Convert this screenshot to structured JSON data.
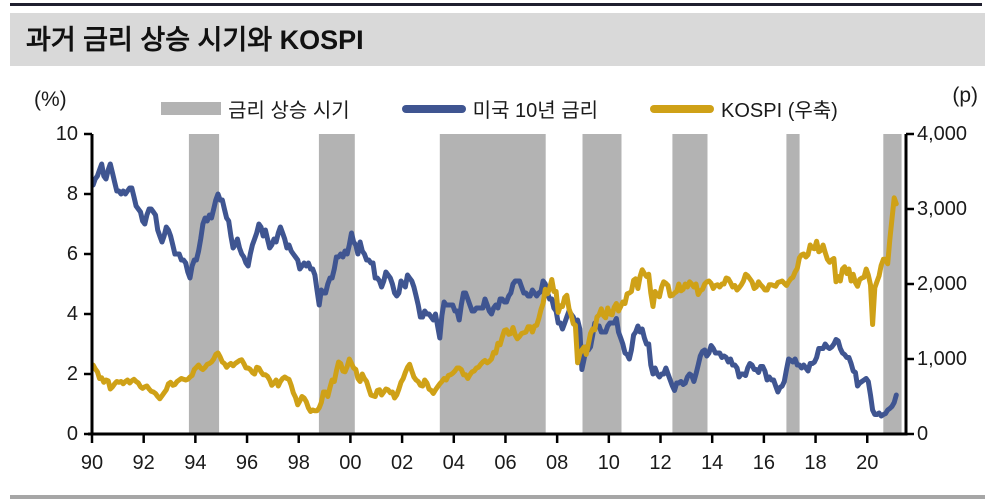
{
  "title": "과거 금리 상승 시기와 KOSPI",
  "chart_data": {
    "type": "line",
    "title": "과거 금리 상승 시기와 KOSPI",
    "x_range": [
      1990,
      2021.5
    ],
    "x_tick_years": [
      1990,
      1992,
      1994,
      1996,
      1998,
      2000,
      2002,
      2004,
      2006,
      2008,
      2010,
      2012,
      2014,
      2016,
      2018,
      2020
    ],
    "x_tick_labels": [
      "90",
      "92",
      "94",
      "96",
      "98",
      "00",
      "02",
      "04",
      "06",
      "08",
      "10",
      "12",
      "14",
      "16",
      "18",
      "20"
    ],
    "left_axis": {
      "unit": "(%)",
      "range": [
        0,
        10
      ],
      "ticks": [
        0,
        2,
        4,
        6,
        8,
        10
      ],
      "tick_labels": [
        "0",
        "2",
        "4",
        "6",
        "8",
        "10"
      ]
    },
    "right_axis": {
      "unit": "(p)",
      "range": [
        0,
        4000
      ],
      "ticks": [
        0,
        1000,
        2000,
        3000,
        4000
      ],
      "tick_labels": [
        "0",
        "1,000",
        "2,000",
        "3,000",
        "4,000"
      ]
    },
    "grid": false,
    "legend_position": "top",
    "legend": [
      {
        "label": "금리 상승 시기",
        "type": "band",
        "color": "#b3b3b3"
      },
      {
        "label": "미국 10년 금리",
        "type": "line",
        "color": "#3f5591"
      },
      {
        "label": "KOSPI (우축)",
        "type": "line",
        "color": "#cfa117"
      }
    ],
    "bands": {
      "name": "금리 상승 시기",
      "color": "#b3b3b3",
      "ranges": [
        [
          1993.75,
          1994.92
        ],
        [
          1998.78,
          2000.17
        ],
        [
          2003.46,
          2007.56
        ],
        [
          2008.98,
          2010.49
        ],
        [
          2012.46,
          2013.82
        ],
        [
          2016.87,
          2017.38
        ],
        [
          2020.62,
          2021.33
        ]
      ]
    },
    "sampling": "monthly",
    "start_year": 1990,
    "series": [
      {
        "name": "미국 10년 금리",
        "axis": "left",
        "color": "#3f5591",
        "values": [
          8.3,
          8.5,
          8.6,
          8.8,
          9.0,
          8.6,
          8.5,
          8.8,
          9.0,
          8.7,
          8.4,
          8.1,
          8.1,
          8.0,
          8.1,
          8.0,
          8.1,
          8.2,
          8.2,
          7.9,
          7.6,
          7.5,
          7.4,
          7.1,
          7.0,
          7.3,
          7.5,
          7.5,
          7.4,
          7.3,
          6.8,
          6.6,
          6.4,
          6.6,
          6.9,
          6.8,
          6.6,
          6.3,
          6.0,
          6.0,
          6.0,
          5.8,
          5.8,
          5.7,
          5.4,
          5.2,
          5.6,
          5.8,
          5.8,
          6.1,
          6.5,
          7.0,
          7.2,
          7.1,
          7.3,
          7.2,
          7.5,
          7.8,
          8.0,
          7.8,
          7.8,
          7.5,
          7.2,
          7.1,
          6.6,
          6.2,
          6.3,
          6.5,
          6.2,
          6.0,
          5.9,
          5.7,
          5.6,
          6.0,
          6.3,
          6.5,
          6.7,
          7.0,
          6.9,
          6.6,
          6.8,
          6.5,
          6.2,
          6.3,
          6.5,
          6.4,
          6.7,
          6.9,
          6.7,
          6.5,
          6.2,
          6.3,
          6.1,
          6.0,
          5.9,
          5.8,
          5.5,
          5.6,
          5.7,
          5.6,
          5.7,
          5.5,
          5.5,
          5.3,
          4.8,
          4.3,
          4.8,
          4.7,
          4.7,
          5.0,
          5.2,
          5.2,
          5.5,
          5.9,
          5.9,
          6.0,
          5.9,
          6.1,
          6.0,
          6.3,
          6.7,
          6.4,
          6.3,
          6.0,
          6.4,
          6.1,
          6.0,
          5.8,
          5.8,
          5.7,
          5.7,
          5.2,
          5.2,
          5.1,
          4.9,
          5.1,
          5.4,
          5.3,
          5.2,
          5.0,
          4.7,
          4.6,
          4.7,
          5.1,
          5.0,
          4.9,
          5.3,
          5.2,
          5.1,
          4.9,
          4.6,
          4.3,
          3.9,
          3.9,
          4.1,
          4.0,
          4.0,
          3.9,
          3.8,
          4.0,
          3.6,
          3.2,
          3.95,
          4.4,
          4.3,
          4.3,
          4.3,
          4.3,
          4.1,
          4.1,
          3.8,
          4.3,
          4.7,
          4.7,
          4.5,
          4.3,
          4.1,
          4.1,
          4.2,
          4.2,
          4.2,
          4.2,
          4.5,
          4.3,
          4.1,
          4.0,
          4.2,
          4.3,
          4.2,
          4.5,
          4.5,
          4.4,
          4.4,
          4.6,
          4.7,
          5.0,
          5.1,
          5.1,
          5.1,
          4.9,
          4.7,
          4.7,
          4.6,
          4.6,
          4.8,
          4.7,
          4.6,
          4.7,
          4.75,
          5.1,
          5.0,
          4.7,
          4.5,
          4.5,
          4.2,
          4.1,
          3.7,
          3.7,
          3.5,
          3.7,
          3.9,
          4.1,
          4.0,
          3.9,
          3.7,
          3.8,
          3.5,
          2.15,
          2.5,
          2.9,
          2.8,
          2.9,
          3.3,
          3.7,
          3.6,
          3.6,
          3.4,
          3.4,
          3.4,
          3.6,
          3.7,
          3.7,
          3.7,
          3.85,
          3.4,
          3.2,
          3.0,
          2.7,
          2.65,
          2.5,
          2.8,
          3.3,
          3.4,
          3.6,
          3.4,
          3.5,
          3.2,
          3.0,
          3.0,
          2.3,
          2.0,
          2.2,
          2.0,
          1.9,
          2.0,
          2.0,
          2.2,
          2.0,
          1.8,
          1.6,
          1.45,
          1.7,
          1.7,
          1.75,
          1.65,
          1.7,
          1.9,
          2.0,
          1.95,
          1.75,
          2.0,
          2.3,
          2.6,
          2.75,
          2.8,
          2.6,
          2.7,
          2.95,
          2.85,
          2.7,
          2.7,
          2.7,
          2.55,
          2.6,
          2.55,
          2.4,
          2.5,
          2.3,
          2.3,
          2.2,
          1.9,
          2.0,
          2.0,
          1.95,
          2.2,
          2.35,
          2.3,
          2.15,
          2.15,
          2.05,
          2.25,
          2.25,
          2.1,
          1.8,
          1.9,
          1.8,
          1.8,
          1.6,
          1.4,
          1.55,
          1.6,
          1.75,
          2.15,
          2.5,
          2.45,
          2.4,
          2.5,
          2.3,
          2.3,
          2.2,
          2.3,
          2.2,
          2.1,
          2.35,
          2.35,
          2.4,
          2.55,
          2.85,
          2.85,
          2.85,
          3.0,
          2.9,
          2.85,
          2.9,
          3.0,
          3.15,
          3.1,
          2.85,
          2.7,
          2.65,
          2.55,
          2.55,
          2.35,
          2.1,
          2.05,
          1.6,
          1.7,
          1.75,
          1.8,
          1.85,
          1.75,
          1.3,
          0.8,
          0.65,
          0.65,
          0.7,
          0.6,
          0.65,
          0.68,
          0.8,
          0.85,
          0.92,
          1.05,
          1.3
        ]
      },
      {
        "name": "KOSPI (우축)",
        "axis": "right",
        "color": "#cfa117",
        "values": [
          920,
          870,
          830,
          740,
          750,
          690,
          720,
          710,
          600,
          630,
          670,
          700,
          690,
          700,
          670,
          700,
          720,
          680,
          710,
          730,
          700,
          680,
          630,
          610,
          630,
          640,
          600,
          570,
          560,
          540,
          500,
          470,
          510,
          550,
          590,
          670,
          690,
          650,
          660,
          700,
          720,
          740,
          730,
          720,
          730,
          760,
          780,
          860,
          890,
          920,
          880,
          860,
          890,
          930,
          940,
          960,
          1000,
          1060,
          1080,
          1030,
          960,
          940,
          890,
          920,
          940,
          910,
          940,
          960,
          980,
          990,
          940,
          880,
          880,
          860,
          820,
          800,
          890,
          880,
          830,
          790,
          790,
          770,
          720,
          650,
          680,
          720,
          640,
          700,
          740,
          760,
          740,
          730,
          650,
          550,
          490,
          390,
          440,
          500,
          480,
          430,
          350,
          300,
          320,
          310,
          310,
          350,
          420,
          560,
          560,
          500,
          620,
          720,
          700,
          840,
          960,
          940,
          840,
          830,
          900,
          1000,
          940,
          880,
          860,
          740,
          700,
          800,
          740,
          700,
          610,
          520,
          510,
          500,
          580,
          590,
          520,
          560,
          600,
          590,
          550,
          560,
          480,
          520,
          600,
          690,
          740,
          820,
          890,
          930,
          840,
          760,
          720,
          700,
          650,
          640,
          720,
          680,
          600,
          580,
          540,
          590,
          630,
          670,
          700,
          740,
          720,
          780,
          790,
          810,
          840,
          880,
          880,
          860,
          790,
          790,
          740,
          790,
          830,
          840,
          880,
          890,
          930,
          960,
          980,
          950,
          970,
          1000,
          1090,
          1080,
          1210,
          1190,
          1290,
          1380,
          1390,
          1330,
          1340,
          1420,
          1320,
          1270,
          1300,
          1340,
          1350,
          1360,
          1430,
          1430,
          1360,
          1440,
          1450,
          1540,
          1660,
          1740,
          1930,
          1870,
          1940,
          2060,
          1900,
          1900,
          1620,
          1710,
          1700,
          1820,
          1850,
          1670,
          1590,
          1470,
          1450,
          950,
          1070,
          1120,
          1160,
          1060,
          1200,
          1340,
          1400,
          1390,
          1560,
          1590,
          1670,
          1580,
          1550,
          1680,
          1600,
          1590,
          1690,
          1740,
          1640,
          1700,
          1760,
          1740,
          1870,
          1880,
          1900,
          2050,
          2070,
          1940,
          2100,
          2190,
          2140,
          2100,
          2130,
          1880,
          1700,
          1900,
          1850,
          1830,
          1960,
          2030,
          2010,
          1980,
          1840,
          1850,
          1880,
          1900,
          2000,
          1910,
          1930,
          2000,
          1960,
          2030,
          2000,
          1960,
          2000,
          1860,
          1910,
          1930,
          2000,
          2030,
          2040,
          2010,
          1940,
          1980,
          1990,
          1960,
          2000,
          2000,
          2080,
          2070,
          2020,
          1960,
          1980,
          1920,
          1950,
          1990,
          2040,
          2130,
          2110,
          2070,
          2030,
          1940,
          1960,
          2030,
          1990,
          1960,
          1920,
          1920,
          1990,
          1990,
          1980,
          1970,
          2020,
          2030,
          2040,
          2010,
          1980,
          2030,
          2070,
          2090,
          2160,
          2210,
          2350,
          2390,
          2400,
          2360,
          2390,
          2520,
          2480,
          2470,
          2570,
          2430,
          2450,
          2520,
          2420,
          2330,
          2290,
          2320,
          2340,
          2030,
          2100,
          2040,
          2200,
          2230,
          2140,
          2200,
          2040,
          2130,
          2020,
          1970,
          2060,
          2080,
          2090,
          2200,
          2120,
          1990,
          1460,
          1950,
          2030,
          2110,
          2250,
          2330,
          2330,
          2270,
          2590,
          2870,
          3150,
          3070
        ]
      }
    ]
  },
  "style_colors": {
    "title_bar_bg": "#d9d9d9",
    "band_gray": "#b3b3b3",
    "line_blue": "#3f5591",
    "line_gold": "#cfa117",
    "bottom_rule": "#a6a6a6",
    "axis": "#000000"
  }
}
